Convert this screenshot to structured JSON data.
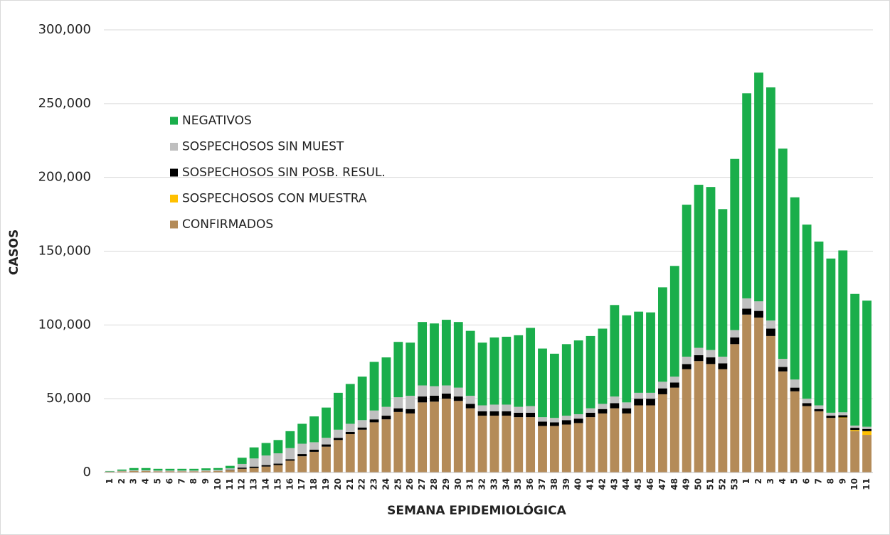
{
  "chart_data": {
    "type": "stacked_bar",
    "x_label": "SEMANA EPIDEMIOLÓGICA",
    "y_label": "CASOS",
    "categories": [
      "1",
      "2",
      "3",
      "4",
      "5",
      "6",
      "7",
      "8",
      "9",
      "10",
      "11",
      "12",
      "13",
      "14",
      "15",
      "16",
      "17",
      "18",
      "19",
      "20",
      "21",
      "22",
      "23",
      "24",
      "25",
      "26",
      "27",
      "28",
      "29",
      "30",
      "31",
      "32",
      "33",
      "34",
      "35",
      "36",
      "37",
      "38",
      "39",
      "40",
      "41",
      "42",
      "43",
      "44",
      "45",
      "46",
      "47",
      "48",
      "49",
      "50",
      "51",
      "52",
      "53",
      "1",
      "2",
      "3",
      "4",
      "5",
      "6",
      "7",
      "8",
      "9",
      "10",
      "11"
    ],
    "series": [
      {
        "name": "CONFIRMADOS",
        "color": "#b48b58",
        "values": [
          500,
          800,
          1000,
          1000,
          800,
          800,
          800,
          800,
          900,
          1000,
          1500,
          2500,
          3000,
          4000,
          5000,
          8000,
          11000,
          14000,
          17500,
          22000,
          26000,
          29000,
          34000,
          36000,
          41000,
          40000,
          47500,
          48000,
          50000,
          48500,
          43500,
          38500,
          38500,
          38500,
          37500,
          37500,
          31500,
          31500,
          32500,
          33500,
          37500,
          40000,
          43500,
          40000,
          45500,
          45500,
          53000,
          57500,
          70000,
          75500,
          73500,
          70000,
          87000,
          107000,
          105000,
          92500,
          68500,
          55000,
          45000,
          41500,
          37000,
          37000,
          28000,
          25500
        ]
      },
      {
        "name": "SOSPECHOSOS CON MUESTRA",
        "color": "#ffc000",
        "values": [
          0,
          0,
          0,
          0,
          0,
          0,
          0,
          0,
          0,
          0,
          0,
          0,
          0,
          0,
          0,
          0,
          0,
          0,
          0,
          0,
          0,
          0,
          0,
          0,
          0,
          0,
          0,
          0,
          0,
          0,
          0,
          0,
          0,
          0,
          0,
          0,
          0,
          0,
          0,
          0,
          0,
          0,
          0,
          0,
          0,
          0,
          0,
          0,
          0,
          0,
          0,
          0,
          0,
          0,
          0,
          0,
          0,
          0,
          0,
          0,
          0,
          300,
          800,
          2500
        ]
      },
      {
        "name": "SOSPECHOSOS SIN POSB. RESUL.",
        "color": "#000000",
        "values": [
          0,
          0,
          0,
          0,
          0,
          0,
          0,
          0,
          0,
          0,
          300,
          800,
          1000,
          1000,
          1000,
          1000,
          1500,
          1500,
          1500,
          1500,
          1500,
          1500,
          2000,
          2500,
          2500,
          3000,
          4000,
          4000,
          3500,
          3000,
          3000,
          3000,
          3000,
          3000,
          3000,
          3000,
          3000,
          2500,
          3000,
          3000,
          3000,
          3000,
          3500,
          3500,
          4500,
          4500,
          4000,
          3500,
          3500,
          4000,
          4500,
          4000,
          4500,
          4000,
          4500,
          5000,
          3000,
          2500,
          2000,
          1500,
          1500,
          1500,
          1500,
          1500
        ]
      },
      {
        "name": "SOSPECHOSOS SIN MUEST",
        "color": "#bfbfbf",
        "values": [
          200,
          400,
          500,
          500,
          500,
          500,
          500,
          500,
          600,
          700,
          1000,
          2500,
          5500,
          6500,
          7000,
          7500,
          7000,
          5000,
          4500,
          5500,
          5500,
          5000,
          6000,
          6000,
          7500,
          9000,
          7500,
          6500,
          5500,
          6000,
          5500,
          4000,
          4500,
          4500,
          4000,
          4500,
          3000,
          3000,
          3000,
          3000,
          3000,
          3500,
          4500,
          4000,
          4000,
          4000,
          4500,
          4000,
          5000,
          5000,
          5000,
          4500,
          5000,
          7000,
          6500,
          5500,
          5500,
          5500,
          3000,
          2500,
          2000,
          2000,
          1500,
          1500
        ]
      },
      {
        "name": "NEGATIVOS",
        "color": "#1aae4b",
        "values": [
          300,
          800,
          1500,
          1500,
          1200,
          1200,
          1200,
          1200,
          1300,
          1300,
          1700,
          4200,
          7500,
          8500,
          9000,
          11500,
          13500,
          17500,
          20500,
          25000,
          27000,
          29500,
          33000,
          33500,
          37500,
          36000,
          43000,
          42500,
          44500,
          44500,
          44000,
          42500,
          45500,
          46000,
          48500,
          53000,
          46500,
          43500,
          48500,
          50000,
          49000,
          51000,
          62000,
          59000,
          55000,
          54500,
          64000,
          75000,
          103000,
          110500,
          110500,
          100000,
          116000,
          139000,
          155000,
          158000,
          142500,
          123500,
          118000,
          111000,
          104500,
          109700,
          89200,
          85500
        ]
      }
    ],
    "ylim": [
      0,
      300000
    ],
    "yticks": [
      0,
      {
        "value": 50000,
        "label": "50,000"
      },
      {
        "value": 100000,
        "label": "100,000"
      },
      {
        "value": 150000,
        "label": "150,000"
      },
      {
        "value": 200000,
        "label": "200,000"
      },
      {
        "value": 250000,
        "label": "250,000"
      },
      {
        "value": 300000,
        "label": "300,000"
      }
    ],
    "grid": true,
    "legend": "upper left"
  }
}
